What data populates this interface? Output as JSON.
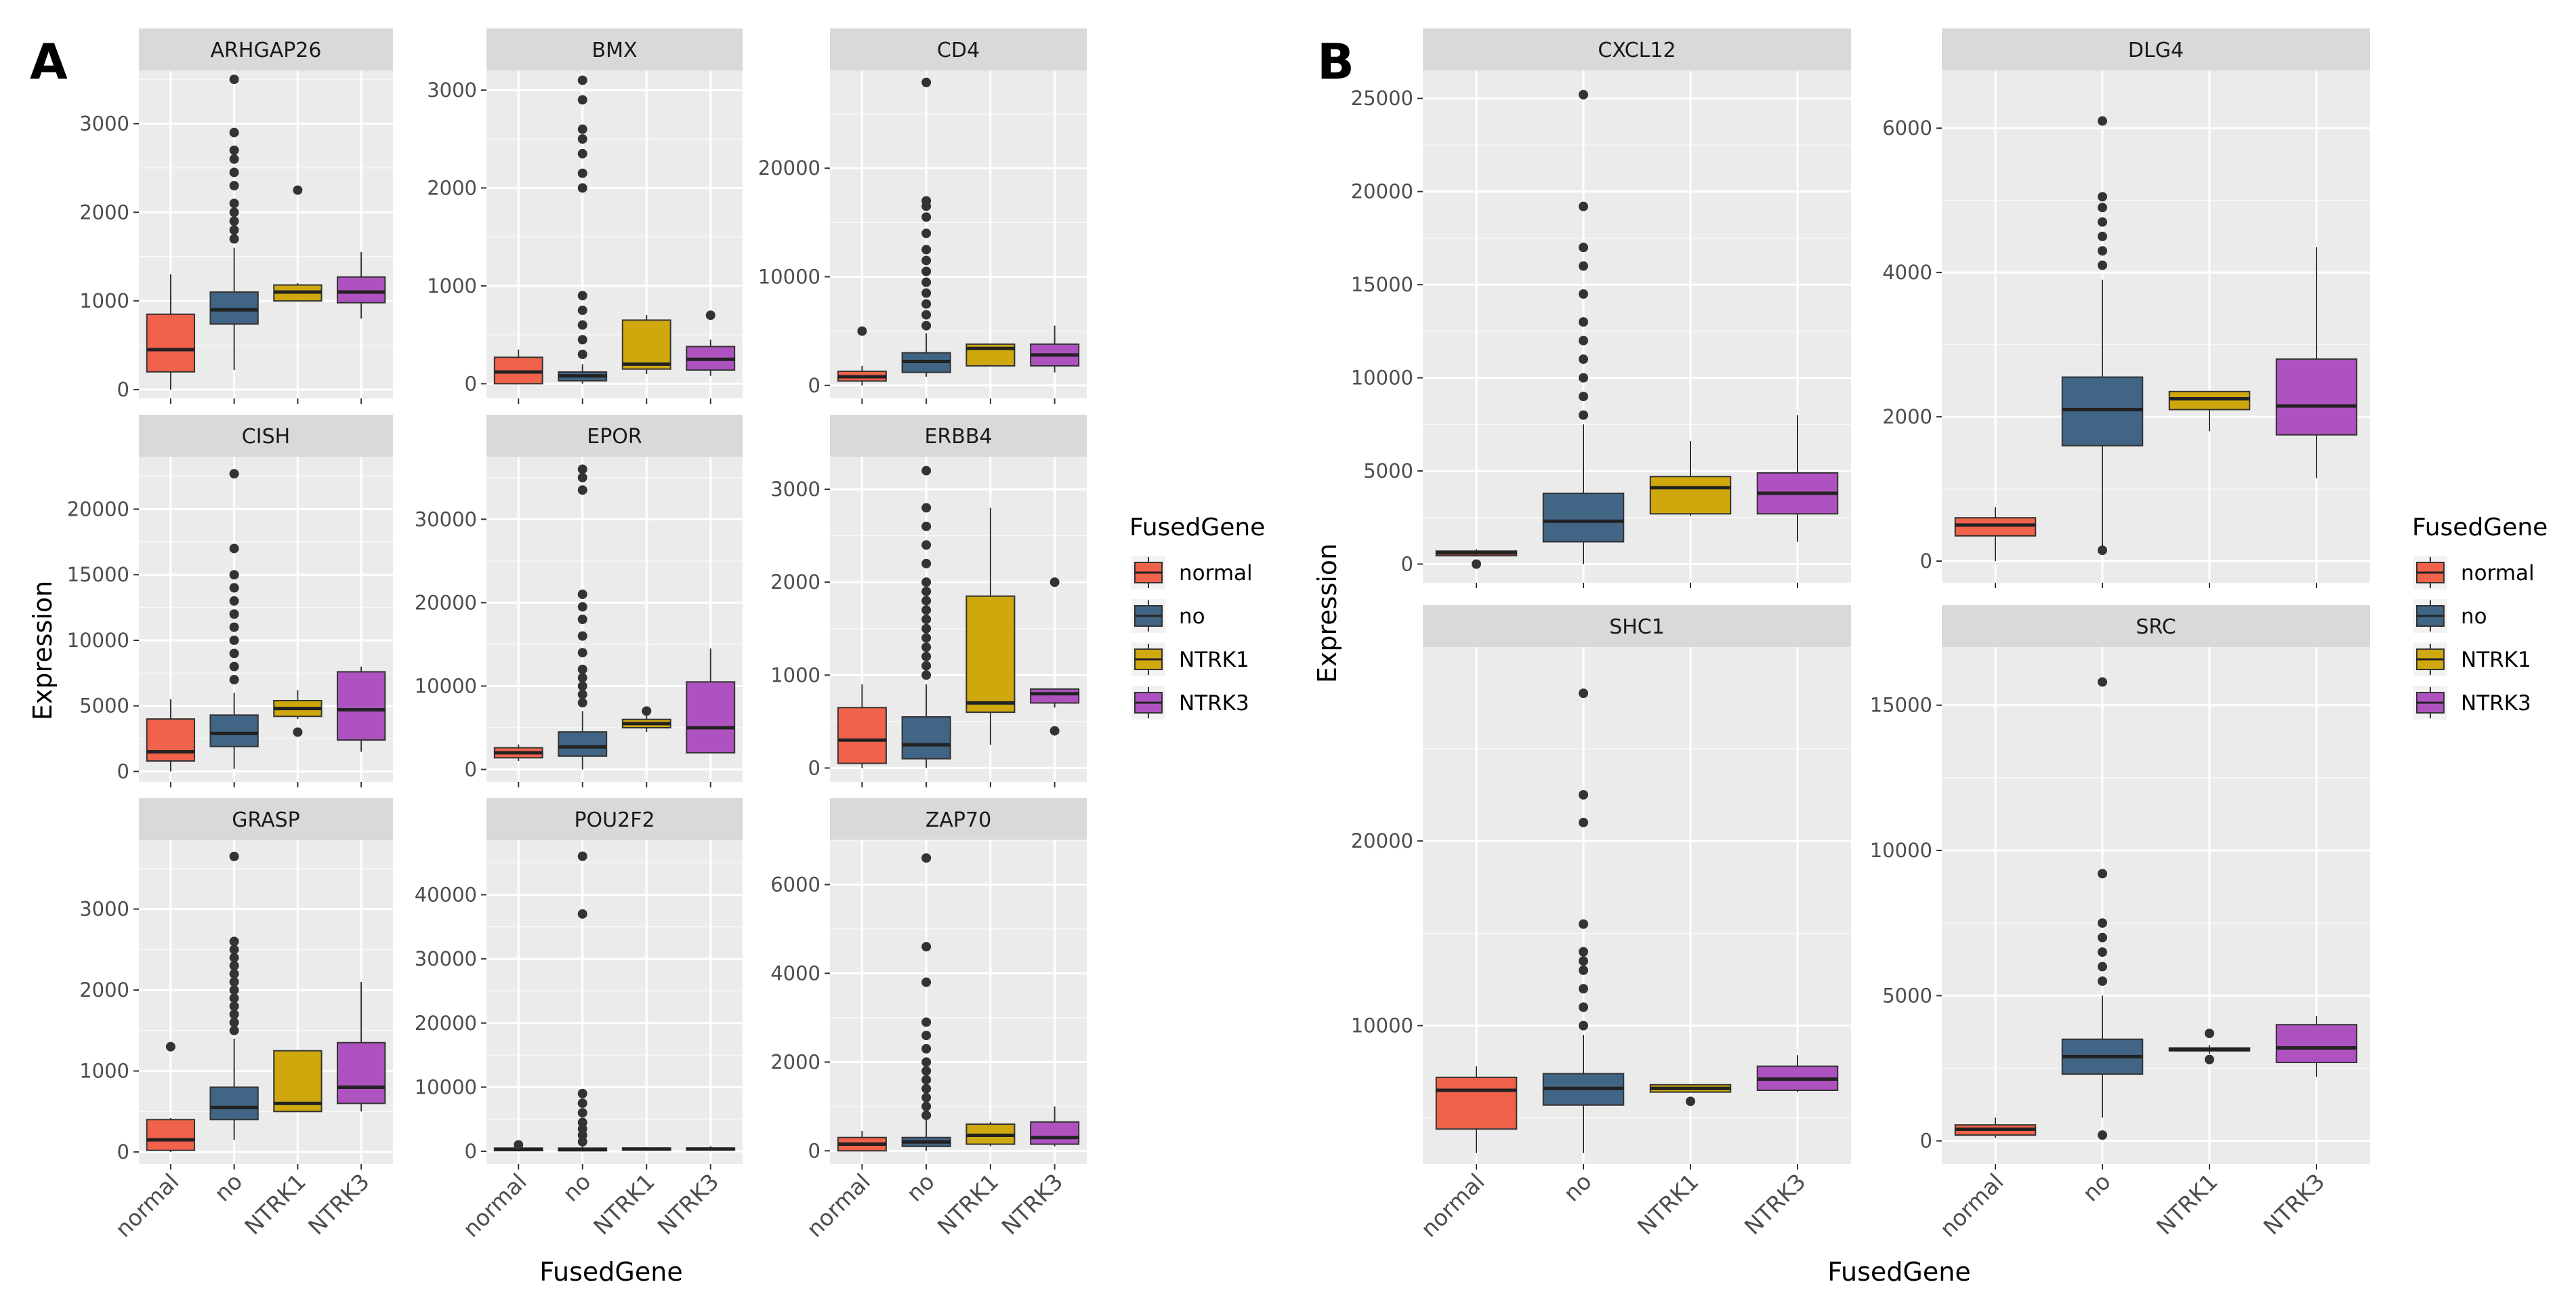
{
  "figure": {
    "panel_labels": [
      "A",
      "B"
    ],
    "legend": {
      "title": "FusedGene",
      "entries": [
        {
          "label": "normal",
          "color": "#f0634a"
        },
        {
          "label": "no",
          "color": "#416585"
        },
        {
          "label": "NTRK1",
          "color": "#cfa80e"
        },
        {
          "label": "NTRK3",
          "color": "#ae52c0"
        }
      ]
    },
    "colors": {
      "panel_bg": "#ebebeb",
      "strip_bg": "#d9d9d9",
      "gridline": "#ffffff",
      "outlier": "#333333"
    }
  },
  "chart_data": [
    {
      "type": "boxplot",
      "panel": "A",
      "xlabel": "FusedGene",
      "ylabel": "Expression",
      "categories": [
        "normal",
        "no",
        "NTRK1",
        "NTRK3"
      ],
      "facets": [
        {
          "title": "ARHGAP26",
          "ylim": [
            -100,
            3600
          ],
          "ticks": [
            0,
            1000,
            2000,
            3000
          ],
          "boxes": [
            {
              "min": 0,
              "q1": 200,
              "median": 450,
              "q3": 850,
              "max": 1300,
              "outliers": []
            },
            {
              "min": 220,
              "q1": 740,
              "median": 900,
              "q3": 1100,
              "max": 1600,
              "outliers": [
                1700,
                1800,
                1900,
                2000,
                2100,
                2300,
                2450,
                2600,
                2700,
                2900,
                3500
              ]
            },
            {
              "min": 1000,
              "q1": 1000,
              "median": 1100,
              "q3": 1180,
              "max": 1200,
              "outliers": [
                2250
              ]
            },
            {
              "min": 800,
              "q1": 980,
              "median": 1100,
              "q3": 1270,
              "max": 1550,
              "outliers": []
            }
          ]
        },
        {
          "title": "BMX",
          "ylim": [
            -150,
            3200
          ],
          "ticks": [
            0,
            1000,
            2000,
            3000
          ],
          "boxes": [
            {
              "min": 0,
              "q1": 0,
              "median": 120,
              "q3": 270,
              "max": 350,
              "outliers": []
            },
            {
              "min": 0,
              "q1": 30,
              "median": 80,
              "q3": 120,
              "max": 200,
              "outliers": [
                300,
                450,
                600,
                750,
                900,
                2000,
                2150,
                2350,
                2500,
                2600,
                2900,
                3100
              ]
            },
            {
              "min": 100,
              "q1": 150,
              "median": 200,
              "q3": 650,
              "max": 700,
              "outliers": []
            },
            {
              "min": 80,
              "q1": 140,
              "median": 250,
              "q3": 380,
              "max": 450,
              "outliers": [
                700
              ]
            }
          ]
        },
        {
          "title": "CD4",
          "ylim": [
            -1200,
            29000
          ],
          "ticks": [
            0,
            10000,
            20000
          ],
          "boxes": [
            {
              "min": 0,
              "q1": 400,
              "median": 800,
              "q3": 1300,
              "max": 1800,
              "outliers": [
                5000
              ]
            },
            {
              "min": 800,
              "q1": 1200,
              "median": 2200,
              "q3": 3000,
              "max": 4800,
              "outliers": [
                5500,
                6500,
                7500,
                8500,
                9500,
                10500,
                11500,
                12500,
                14000,
                15500,
                16500,
                17000,
                27900
              ]
            },
            {
              "min": 1800,
              "q1": 1800,
              "median": 3400,
              "q3": 3800,
              "max": 3800,
              "outliers": []
            },
            {
              "min": 1200,
              "q1": 1800,
              "median": 2800,
              "q3": 3800,
              "max": 5500,
              "outliers": []
            }
          ]
        },
        {
          "title": "CISH",
          "ylim": [
            -800,
            24000
          ],
          "ticks": [
            0,
            5000,
            10000,
            15000,
            20000
          ],
          "boxes": [
            {
              "min": 0,
              "q1": 800,
              "median": 1500,
              "q3": 4000,
              "max": 5500,
              "outliers": []
            },
            {
              "min": 200,
              "q1": 1900,
              "median": 2900,
              "q3": 4300,
              "max": 6000,
              "outliers": [
                7000,
                8000,
                9000,
                10000,
                11000,
                12000,
                13000,
                14000,
                15000,
                17000,
                22700
              ]
            },
            {
              "min": 4000,
              "q1": 4200,
              "median": 4800,
              "q3": 5400,
              "max": 6200,
              "outliers": [
                3000
              ]
            },
            {
              "min": 1500,
              "q1": 2400,
              "median": 4700,
              "q3": 7600,
              "max": 8000,
              "outliers": []
            }
          ]
        },
        {
          "title": "EPOR",
          "ylim": [
            -1500,
            37500
          ],
          "ticks": [
            0,
            10000,
            20000,
            30000
          ],
          "boxes": [
            {
              "min": 1000,
              "q1": 1400,
              "median": 2000,
              "q3": 2600,
              "max": 3000,
              "outliers": []
            },
            {
              "min": 0,
              "q1": 1600,
              "median": 2700,
              "q3": 4500,
              "max": 7000,
              "outliers": [
                8000,
                9000,
                10000,
                11000,
                12000,
                14000,
                16000,
                18000,
                19500,
                21000,
                33500,
                35000,
                36000
              ]
            },
            {
              "min": 4500,
              "q1": 5000,
              "median": 5500,
              "q3": 6000,
              "max": 6500,
              "outliers": [
                7000
              ]
            },
            {
              "min": 2000,
              "q1": 2000,
              "median": 5000,
              "q3": 10500,
              "max": 14500,
              "outliers": []
            }
          ]
        },
        {
          "title": "ERBB4",
          "ylim": [
            -150,
            3350
          ],
          "ticks": [
            0,
            1000,
            2000,
            3000
          ],
          "boxes": [
            {
              "min": 0,
              "q1": 50,
              "median": 300,
              "q3": 650,
              "max": 900,
              "outliers": []
            },
            {
              "min": 0,
              "q1": 100,
              "median": 250,
              "q3": 550,
              "max": 900,
              "outliers": [
                1000,
                1100,
                1200,
                1300,
                1400,
                1500,
                1600,
                1700,
                1800,
                1900,
                2000,
                2200,
                2400,
                2600,
                2800,
                3200
              ]
            },
            {
              "min": 250,
              "q1": 600,
              "median": 700,
              "q3": 1850,
              "max": 2800,
              "outliers": []
            },
            {
              "min": 650,
              "q1": 700,
              "median": 800,
              "q3": 850,
              "max": 850,
              "outliers": [
                400,
                2000
              ]
            }
          ]
        },
        {
          "title": "GRASP",
          "ylim": [
            -150,
            3850
          ],
          "ticks": [
            0,
            1000,
            2000,
            3000
          ],
          "boxes": [
            {
              "min": 0,
              "q1": 20,
              "median": 150,
              "q3": 400,
              "max": 420,
              "outliers": [
                1300
              ]
            },
            {
              "min": 150,
              "q1": 400,
              "median": 550,
              "q3": 800,
              "max": 1400,
              "outliers": [
                1500,
                1600,
                1700,
                1800,
                1900,
                2000,
                2100,
                2200,
                2300,
                2400,
                2500,
                2600,
                3650
              ]
            },
            {
              "min": 500,
              "q1": 500,
              "median": 600,
              "q3": 1250,
              "max": 1250,
              "outliers": []
            },
            {
              "min": 500,
              "q1": 600,
              "median": 800,
              "q3": 1350,
              "max": 2100,
              "outliers": []
            }
          ]
        },
        {
          "title": "POU2F2",
          "ylim": [
            -2000,
            48500
          ],
          "ticks": [
            0,
            10000,
            20000,
            30000,
            40000
          ],
          "boxes": [
            {
              "min": 0,
              "q1": 100,
              "median": 300,
              "q3": 500,
              "max": 700,
              "outliers": [
                1000
              ]
            },
            {
              "min": 0,
              "q1": 100,
              "median": 250,
              "q3": 500,
              "max": 900,
              "outliers": [
                1500,
                2500,
                3500,
                4500,
                6000,
                7500,
                9000,
                37000,
                46000
              ]
            },
            {
              "min": 100,
              "q1": 200,
              "median": 350,
              "q3": 500,
              "max": 600,
              "outliers": []
            },
            {
              "min": 100,
              "q1": 200,
              "median": 350,
              "q3": 500,
              "max": 800,
              "outliers": []
            }
          ]
        },
        {
          "title": "ZAP70",
          "ylim": [
            -300,
            7000
          ],
          "ticks": [
            0,
            2000,
            4000,
            6000
          ],
          "boxes": [
            {
              "min": 0,
              "q1": 0,
              "median": 150,
              "q3": 300,
              "max": 450,
              "outliers": []
            },
            {
              "min": 0,
              "q1": 100,
              "median": 200,
              "q3": 300,
              "max": 700,
              "outliers": [
                800,
                1000,
                1200,
                1400,
                1600,
                1800,
                2000,
                2300,
                2600,
                2900,
                3800,
                4600,
                6600
              ]
            },
            {
              "min": 100,
              "q1": 150,
              "median": 350,
              "q3": 600,
              "max": 650,
              "outliers": []
            },
            {
              "min": 100,
              "q1": 150,
              "median": 300,
              "q3": 650,
              "max": 1000,
              "outliers": []
            }
          ]
        }
      ]
    },
    {
      "type": "boxplot",
      "panel": "B",
      "xlabel": "FusedGene",
      "ylabel": "Expression",
      "categories": [
        "normal",
        "no",
        "NTRK1",
        "NTRK3"
      ],
      "facets": [
        {
          "title": "CXCL12",
          "ylim": [
            -1000,
            26500
          ],
          "ticks": [
            0,
            5000,
            10000,
            15000,
            20000,
            25000
          ],
          "boxes": [
            {
              "min": 400,
              "q1": 450,
              "median": 600,
              "q3": 700,
              "max": 800,
              "outliers": [
                0
              ]
            },
            {
              "min": 0,
              "q1": 1200,
              "median": 2300,
              "q3": 3800,
              "max": 7500,
              "outliers": [
                8000,
                9000,
                10000,
                11000,
                12000,
                13000,
                14500,
                16000,
                17000,
                19200,
                25200
              ]
            },
            {
              "min": 2600,
              "q1": 2700,
              "median": 4100,
              "q3": 4700,
              "max": 6600,
              "outliers": []
            },
            {
              "min": 1200,
              "q1": 2700,
              "median": 3800,
              "q3": 4900,
              "max": 8000,
              "outliers": []
            }
          ]
        },
        {
          "title": "DLG4",
          "ylim": [
            -300,
            6800
          ],
          "ticks": [
            0,
            2000,
            4000,
            6000
          ],
          "boxes": [
            {
              "min": 0,
              "q1": 350,
              "median": 500,
              "q3": 600,
              "max": 750,
              "outliers": []
            },
            {
              "min": 100,
              "q1": 1600,
              "median": 2100,
              "q3": 2550,
              "max": 3900,
              "outliers": [
                150,
                4100,
                4300,
                4500,
                4700,
                4900,
                5050,
                6100
              ]
            },
            {
              "min": 1800,
              "q1": 2100,
              "median": 2250,
              "q3": 2350,
              "max": 2350,
              "outliers": []
            },
            {
              "min": 1150,
              "q1": 1750,
              "median": 2150,
              "q3": 2800,
              "max": 4350,
              "outliers": []
            }
          ]
        },
        {
          "title": "SHC1",
          "ylim": [
            2500,
            30500
          ],
          "ticks": [
            10000,
            20000
          ],
          "boxes": [
            {
              "min": 3100,
              "q1": 4400,
              "median": 6500,
              "q3": 7200,
              "max": 7800,
              "outliers": []
            },
            {
              "min": 3100,
              "q1": 5700,
              "median": 6600,
              "q3": 7400,
              "max": 9500,
              "outliers": [
                10000,
                11000,
                12000,
                13000,
                13500,
                14000,
                15500,
                21000,
                22500,
                28000
              ]
            },
            {
              "min": 6400,
              "q1": 6400,
              "median": 6600,
              "q3": 6800,
              "max": 6800,
              "outliers": [
                5900
              ]
            },
            {
              "min": 6400,
              "q1": 6500,
              "median": 7100,
              "q3": 7800,
              "max": 8400,
              "outliers": []
            }
          ]
        },
        {
          "title": "SRC",
          "ylim": [
            -800,
            17000
          ],
          "ticks": [
            0,
            5000,
            10000,
            15000
          ],
          "boxes": [
            {
              "min": 100,
              "q1": 200,
              "median": 400,
              "q3": 550,
              "max": 800,
              "outliers": []
            },
            {
              "min": 800,
              "q1": 2300,
              "median": 2900,
              "q3": 3500,
              "max": 5000,
              "outliers": [
                200,
                5500,
                6000,
                6500,
                7000,
                7500,
                9200,
                15800
              ]
            },
            {
              "min": 3000,
              "q1": 3100,
              "median": 3150,
              "q3": 3200,
              "max": 3300,
              "outliers": [
                2800,
                3700
              ]
            },
            {
              "min": 2200,
              "q1": 2700,
              "median": 3200,
              "q3": 4000,
              "max": 4300,
              "outliers": []
            }
          ]
        }
      ]
    }
  ]
}
